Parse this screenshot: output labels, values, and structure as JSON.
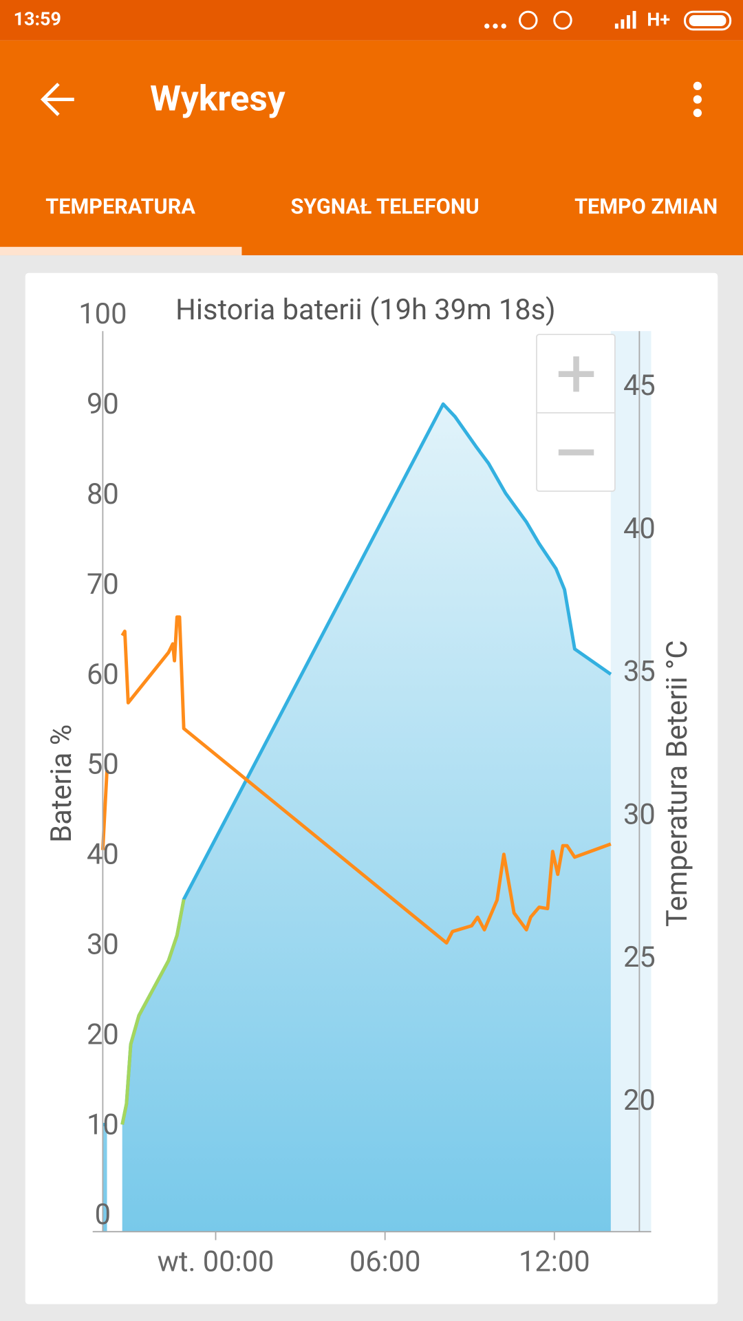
{
  "status_bar": {
    "time": "13:59",
    "network": "H+"
  },
  "app_bar": {
    "title": "Wykresy"
  },
  "tabs": [
    "TEMPERATURA",
    "SYGNAŁ TELEFONU",
    "TEMPO ZMIAN"
  ],
  "chart_data": {
    "type": "line",
    "title": "Historia baterii (19h 39m 18s)",
    "y_label": "Bateria %",
    "y2_label": "Temperatura Beterii °C",
    "xlim": [
      -4,
      15.43
    ],
    "xticks": [
      {
        "value": 0,
        "label": "wt. 00:00"
      },
      {
        "value": 6,
        "label": "06:00"
      },
      {
        "value": 12,
        "label": "12:00"
      }
    ],
    "ylim": [
      0,
      100
    ],
    "yticks": [
      0,
      10,
      20,
      30,
      40,
      50,
      60,
      70,
      80,
      90,
      100
    ],
    "y2lim": [
      16,
      47.5
    ],
    "y2ticks": [
      20,
      25,
      30,
      35,
      40,
      45
    ],
    "series": [
      {
        "color": "#33b0e0",
        "area": true,
        "x": [
          -4.0,
          -3.85,
          -3.6,
          -3.31,
          -3.16,
          -3.01,
          -2.72,
          -1.67,
          -1.37,
          -1.13,
          8.06,
          8.48,
          9.22,
          9.67,
          10.27,
          11.01,
          11.46,
          12.06,
          12.36,
          12.72,
          14.0
        ],
        "values": [
          11.9,
          11.9,
          null,
          11.9,
          14.2,
          20.8,
          24.0,
          30.1,
          32.9,
          36.9,
          91.9,
          90.5,
          87.2,
          85.3,
          82.0,
          78.8,
          76.4,
          73.6,
          71.3,
          64.7,
          61.9
        ]
      },
      {
        "color": "#a4d65e",
        "x": [
          -3.31,
          -3.16,
          -3.01,
          -2.72,
          -1.67,
          -1.37,
          -1.13
        ],
        "values": [
          11.9,
          14.2,
          20.8,
          24.0,
          30.1,
          32.9,
          36.9
        ]
      },
      {
        "color": "#ff8c1a",
        "axis": "y2",
        "x": [
          -4.0,
          -3.85,
          -3.6,
          -3.31,
          -3.22,
          -3.1,
          -1.67,
          -1.52,
          -1.46,
          -1.37,
          -1.28,
          -1.13,
          8.18,
          8.39,
          9.07,
          9.28,
          9.52,
          9.97,
          10.21,
          10.57,
          11.01,
          11.16,
          11.46,
          11.76,
          11.94,
          12.12,
          12.3,
          12.45,
          12.72,
          14.0
        ],
        "values": [
          29.35,
          32.15,
          null,
          36.85,
          37.0,
          34.5,
          36.26,
          36.56,
          35.97,
          37.5,
          37.5,
          33.6,
          26.1,
          26.5,
          26.7,
          27.0,
          26.56,
          27.6,
          29.2,
          27.15,
          26.56,
          27.0,
          27.35,
          27.3,
          29.3,
          28.5,
          29.5,
          29.5,
          29.1,
          29.56
        ]
      }
    ]
  }
}
